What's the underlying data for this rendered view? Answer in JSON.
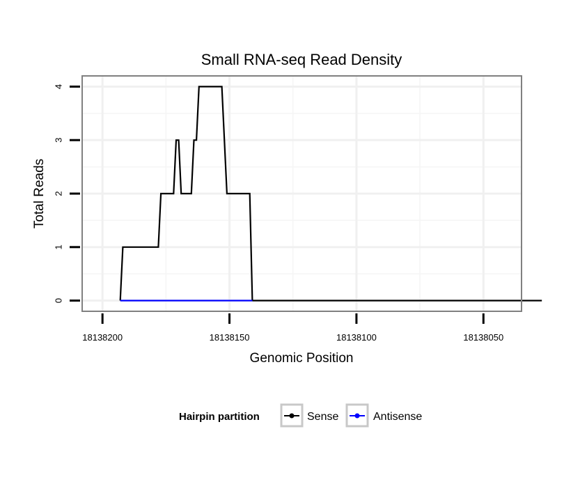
{
  "chart_data": {
    "type": "line",
    "title": "Small RNA-seq Read Density",
    "xlabel": "Genomic Position",
    "ylabel": "Total Reads",
    "x_reversed": true,
    "xlim": [
      18138208,
      18138035
    ],
    "ylim": [
      -0.2,
      4.2
    ],
    "x_ticks": [
      18138200,
      18138150,
      18138100,
      18138050
    ],
    "x_tick_labels": [
      "18138200",
      "18138150",
      "18138100",
      "18138050"
    ],
    "y_ticks": [
      0,
      1,
      2,
      3,
      4
    ],
    "y_tick_labels": [
      "0",
      "1",
      "2",
      "3",
      "4"
    ],
    "x_minor_ticks": [
      18138175,
      18138125,
      18138075
    ],
    "y_minor_ticks": [
      0.5,
      1.5,
      2.5,
      3.5
    ],
    "grid": true,
    "legend": {
      "title": "Hairpin partition",
      "position": "bottom",
      "entries": [
        "Sense",
        "Antisense"
      ]
    },
    "colors": {
      "Sense": "#000000",
      "Antisense": "#0000ff"
    },
    "series": [
      {
        "name": "Sense",
        "x": [
          18138193,
          18138192,
          18138178,
          18138177,
          18138172,
          18138171,
          18138170,
          18138169,
          18138165,
          18138164,
          18138163,
          18138162,
          18138153,
          18138151,
          18138149,
          18138142,
          18138141
        ],
        "y": [
          0,
          1,
          1,
          2,
          2,
          3,
          3,
          2,
          2,
          3,
          3,
          4,
          4,
          2,
          2,
          2,
          0
        ],
        "x_end": 18138027
      },
      {
        "name": "Antisense",
        "x": [
          18138193,
          18138141
        ],
        "y": [
          0,
          0
        ]
      }
    ]
  }
}
